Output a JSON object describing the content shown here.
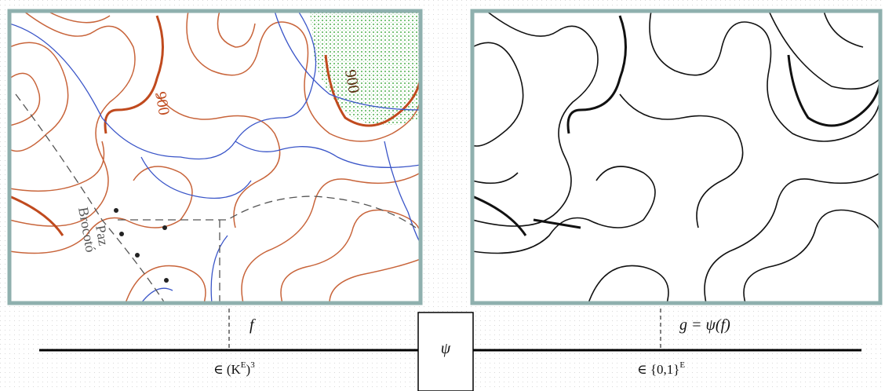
{
  "diagram": {
    "map_labels": [
      "900",
      "900",
      "Paz",
      "Brocotó"
    ],
    "input_label": "f",
    "output_label": "g = ψ(f)",
    "operator": "ψ",
    "input_domain": [
      "∈ (K",
      "E",
      ")",
      "3"
    ],
    "output_domain": [
      "∈ {0,1}",
      "E"
    ]
  }
}
